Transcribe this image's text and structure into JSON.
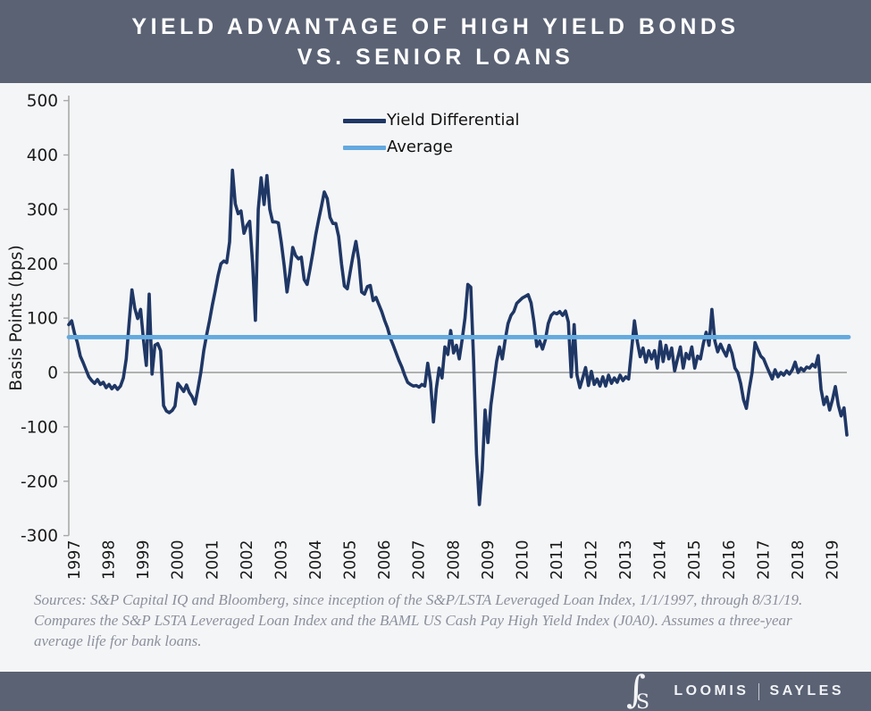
{
  "header": {
    "title_line1": "YIELD ADVANTAGE OF HIGH YIELD BONDS",
    "title_line2": "VS. SENIOR LOANS"
  },
  "legend": {
    "items": [
      {
        "label": "Yield Differential",
        "color": "#1f3765"
      },
      {
        "label": "Average",
        "color": "#63aadf"
      }
    ]
  },
  "footnote": {
    "line1": "Sources: S&P Capital IQ and Bloomberg, since inception of the S&P/LSTA Leveraged Loan Index, 1/1/1997, through 8/31/19.",
    "line2": "Compares the S&P LSTA Leveraged Loan Index and the BAML US Cash Pay High Yield Index (J0A0). Assumes a three-year",
    "line3": "average life for bank loans."
  },
  "footer": {
    "logo": "LS-monogram",
    "brand_left": "LOOMIS",
    "brand_right": "SAYLES"
  },
  "colors": {
    "header_bg": "#5a6274",
    "chart_bg": "#f4f5f7",
    "series_line": "#1f3765",
    "average_line": "#63aadf",
    "zero_line": "#999999",
    "axis": "#a9a9a9",
    "tick_text": "#1a1a1a",
    "footnote_text": "#8c909c"
  },
  "chart_data": {
    "type": "line",
    "title": "YIELD ADVANTAGE OF HIGH YIELD BONDS VS. SENIOR LOANS",
    "ylabel": "Basis Points (bps)",
    "ylim": [
      -300,
      500
    ],
    "y_ticks": [
      500,
      400,
      300,
      200,
      100,
      0,
      -100,
      -200,
      -300
    ],
    "x_years": [
      1997,
      1998,
      1999,
      2000,
      2001,
      2002,
      2003,
      2004,
      2005,
      2006,
      2007,
      2008,
      2009,
      2010,
      2011,
      2012,
      2013,
      2014,
      2015,
      2016,
      2017,
      2018,
      2019
    ],
    "frequency": "monthly",
    "start_month": "1997-01",
    "end_month": "2019-08",
    "grid": false,
    "legend_position": "top-center",
    "average_value": 65,
    "series": [
      {
        "name": "Yield Differential",
        "color": "#1f3765",
        "values": [
          88,
          95,
          72,
          55,
          30,
          18,
          5,
          -8,
          -15,
          -20,
          -13,
          -22,
          -18,
          -28,
          -22,
          -30,
          -24,
          -31,
          -25,
          -10,
          25,
          90,
          152,
          118,
          99,
          116,
          60,
          13,
          144,
          -3,
          50,
          53,
          40,
          -61,
          -71,
          -74,
          -70,
          -62,
          -20,
          -27,
          -35,
          -23,
          -37,
          -45,
          -58,
          -30,
          0,
          40,
          69,
          95,
          124,
          150,
          178,
          200,
          205,
          202,
          240,
          372,
          310,
          292,
          297,
          256,
          270,
          278,
          202,
          96,
          300,
          358,
          309,
          362,
          300,
          277,
          277,
          275,
          240,
          197,
          148,
          185,
          230,
          215,
          209,
          212,
          171,
          162,
          190,
          220,
          253,
          280,
          305,
          332,
          320,
          285,
          274,
          274,
          250,
          200,
          159,
          154,
          185,
          215,
          241,
          207,
          148,
          144,
          158,
          160,
          132,
          138,
          125,
          112,
          96,
          82,
          63,
          50,
          36,
          22,
          10,
          -5,
          -18,
          -22,
          -25,
          -24,
          -27,
          -22,
          -25,
          17,
          -18,
          -91,
          -30,
          8,
          -10,
          47,
          33,
          77,
          36,
          50,
          25,
          60,
          100,
          162,
          157,
          20,
          -150,
          -243,
          -180,
          -69,
          -129,
          -60,
          -20,
          20,
          47,
          25,
          60,
          90,
          105,
          112,
          127,
          132,
          137,
          140,
          143,
          128,
          93,
          48,
          58,
          43,
          60,
          90,
          105,
          110,
          108,
          112,
          105,
          113,
          93,
          -8,
          88,
          -5,
          -28,
          -10,
          9,
          -24,
          2,
          -22,
          -12,
          -25,
          -8,
          -25,
          -5,
          -20,
          -10,
          -18,
          -5,
          -15,
          -8,
          -12,
          40,
          95,
          57,
          29,
          45,
          19,
          40,
          25,
          40,
          8,
          57,
          20,
          50,
          25,
          45,
          3,
          25,
          47,
          8,
          35,
          25,
          47,
          8,
          30,
          25,
          53,
          74,
          50,
          116,
          58,
          38,
          52,
          40,
          30,
          50,
          35,
          8,
          0,
          -20,
          -50,
          -66,
          -30,
          0,
          55,
          42,
          30,
          25,
          12,
          0,
          -12,
          5,
          -8,
          0,
          -5,
          3,
          -3,
          5,
          19,
          0,
          8,
          3,
          10,
          8,
          15,
          10,
          31,
          -31,
          -59,
          -45,
          -69,
          -50,
          -26,
          -60,
          -80,
          -65,
          -115
        ]
      },
      {
        "name": "Average",
        "color": "#63aadf",
        "value": 65
      }
    ]
  }
}
